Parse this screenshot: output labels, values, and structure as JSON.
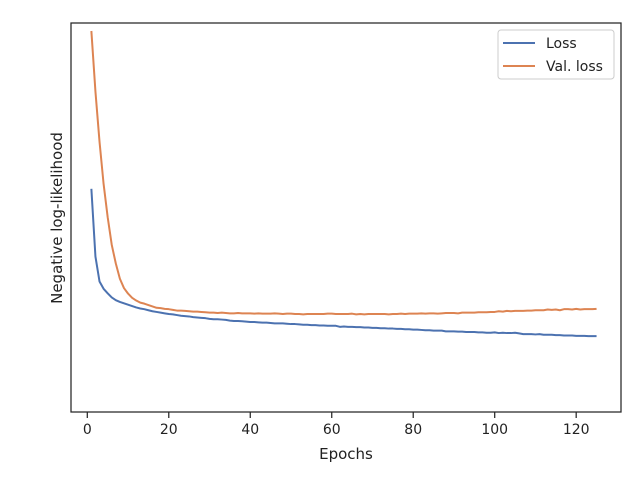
{
  "chart_data": {
    "type": "line",
    "title": "",
    "xlabel": "Epochs",
    "ylabel": "Negative log-likelihood",
    "xlim": [
      -4,
      131
    ],
    "ylim": [
      0,
      1
    ],
    "xticks": [
      0,
      20,
      40,
      60,
      80,
      100,
      120
    ],
    "y_tick_labels_shown": false,
    "grid": false,
    "legend_position": "top-right",
    "series": [
      {
        "name": "Loss",
        "color": "#4c72b0",
        "x": [
          1,
          2,
          3,
          4,
          5,
          6,
          7,
          8,
          9,
          10,
          11,
          12,
          13,
          14,
          15,
          16,
          17,
          18,
          19,
          20,
          21,
          22,
          23,
          24,
          25,
          26,
          27,
          28,
          29,
          30,
          31,
          32,
          33,
          34,
          35,
          36,
          37,
          38,
          39,
          40,
          41,
          42,
          43,
          44,
          45,
          46,
          47,
          48,
          49,
          50,
          51,
          52,
          53,
          54,
          55,
          56,
          57,
          58,
          59,
          60,
          61,
          62,
          63,
          64,
          65,
          66,
          67,
          68,
          69,
          70,
          71,
          72,
          73,
          74,
          75,
          76,
          77,
          78,
          79,
          80,
          81,
          82,
          83,
          84,
          85,
          86,
          87,
          88,
          89,
          90,
          91,
          92,
          93,
          94,
          95,
          96,
          97,
          98,
          99,
          100,
          101,
          102,
          103,
          104,
          105,
          106,
          107,
          108,
          109,
          110,
          111,
          112,
          113,
          114,
          115,
          116,
          117,
          118,
          119,
          120,
          121,
          122,
          123,
          124,
          125
        ],
        "y": [
          0.544,
          0.348,
          0.276,
          0.255,
          0.242,
          0.23,
          0.222,
          0.217,
          0.213,
          0.209,
          0.205,
          0.201,
          0.198,
          0.196,
          0.193,
          0.19,
          0.188,
          0.186,
          0.184,
          0.182,
          0.181,
          0.179,
          0.177,
          0.176,
          0.175,
          0.173,
          0.172,
          0.171,
          0.17,
          0.168,
          0.167,
          0.167,
          0.166,
          0.165,
          0.163,
          0.162,
          0.162,
          0.161,
          0.16,
          0.159,
          0.159,
          0.158,
          0.157,
          0.157,
          0.156,
          0.155,
          0.155,
          0.155,
          0.154,
          0.153,
          0.153,
          0.152,
          0.151,
          0.151,
          0.15,
          0.15,
          0.149,
          0.149,
          0.148,
          0.148,
          0.148,
          0.145,
          0.146,
          0.145,
          0.145,
          0.144,
          0.144,
          0.143,
          0.143,
          0.142,
          0.142,
          0.141,
          0.141,
          0.14,
          0.14,
          0.139,
          0.139,
          0.138,
          0.138,
          0.137,
          0.137,
          0.136,
          0.135,
          0.135,
          0.134,
          0.134,
          0.134,
          0.132,
          0.132,
          0.132,
          0.131,
          0.131,
          0.13,
          0.13,
          0.13,
          0.129,
          0.129,
          0.128,
          0.128,
          0.129,
          0.127,
          0.128,
          0.127,
          0.127,
          0.128,
          0.126,
          0.124,
          0.124,
          0.124,
          0.123,
          0.124,
          0.122,
          0.122,
          0.122,
          0.121,
          0.121,
          0.12,
          0.12,
          0.12,
          0.119,
          0.119,
          0.119,
          0.118,
          0.118,
          0.118
        ]
      },
      {
        "name": "Val. loss",
        "color": "#dd8452",
        "x": [
          1,
          2,
          3,
          4,
          5,
          6,
          7,
          8,
          9,
          10,
          11,
          12,
          13,
          14,
          15,
          16,
          17,
          18,
          19,
          20,
          21,
          22,
          23,
          24,
          25,
          26,
          27,
          28,
          29,
          30,
          31,
          32,
          33,
          34,
          35,
          36,
          37,
          38,
          39,
          40,
          41,
          42,
          43,
          44,
          45,
          46,
          47,
          48,
          49,
          50,
          51,
          52,
          53,
          54,
          55,
          56,
          57,
          58,
          59,
          60,
          61,
          62,
          63,
          64,
          65,
          66,
          67,
          68,
          69,
          70,
          71,
          72,
          73,
          74,
          75,
          76,
          77,
          78,
          79,
          80,
          81,
          82,
          83,
          84,
          85,
          86,
          87,
          88,
          89,
          90,
          91,
          92,
          93,
          94,
          95,
          96,
          97,
          98,
          99,
          100,
          101,
          102,
          103,
          104,
          105,
          106,
          107,
          108,
          109,
          110,
          111,
          112,
          113,
          114,
          115,
          116,
          117,
          118,
          119,
          120,
          121,
          122,
          123,
          124,
          125
        ],
        "y": [
          1.0,
          0.825,
          0.68,
          0.558,
          0.462,
          0.382,
          0.328,
          0.284,
          0.257,
          0.241,
          0.229,
          0.221,
          0.215,
          0.212,
          0.208,
          0.204,
          0.2,
          0.199,
          0.197,
          0.196,
          0.194,
          0.192,
          0.192,
          0.191,
          0.19,
          0.189,
          0.189,
          0.188,
          0.187,
          0.186,
          0.186,
          0.185,
          0.186,
          0.185,
          0.184,
          0.184,
          0.185,
          0.184,
          0.184,
          0.184,
          0.183,
          0.184,
          0.183,
          0.183,
          0.183,
          0.184,
          0.183,
          0.182,
          0.183,
          0.183,
          0.182,
          0.182,
          0.181,
          0.182,
          0.182,
          0.182,
          0.182,
          0.182,
          0.183,
          0.183,
          0.182,
          0.182,
          0.182,
          0.182,
          0.183,
          0.181,
          0.182,
          0.181,
          0.182,
          0.182,
          0.182,
          0.182,
          0.182,
          0.181,
          0.182,
          0.182,
          0.183,
          0.182,
          0.183,
          0.183,
          0.183,
          0.184,
          0.183,
          0.184,
          0.184,
          0.183,
          0.184,
          0.185,
          0.185,
          0.185,
          0.184,
          0.186,
          0.186,
          0.186,
          0.186,
          0.187,
          0.187,
          0.187,
          0.188,
          0.188,
          0.19,
          0.189,
          0.191,
          0.19,
          0.191,
          0.191,
          0.191,
          0.192,
          0.192,
          0.193,
          0.193,
          0.193,
          0.195,
          0.194,
          0.195,
          0.193,
          0.196,
          0.196,
          0.195,
          0.197,
          0.195,
          0.196,
          0.196,
          0.196,
          0.197
        ]
      }
    ]
  }
}
